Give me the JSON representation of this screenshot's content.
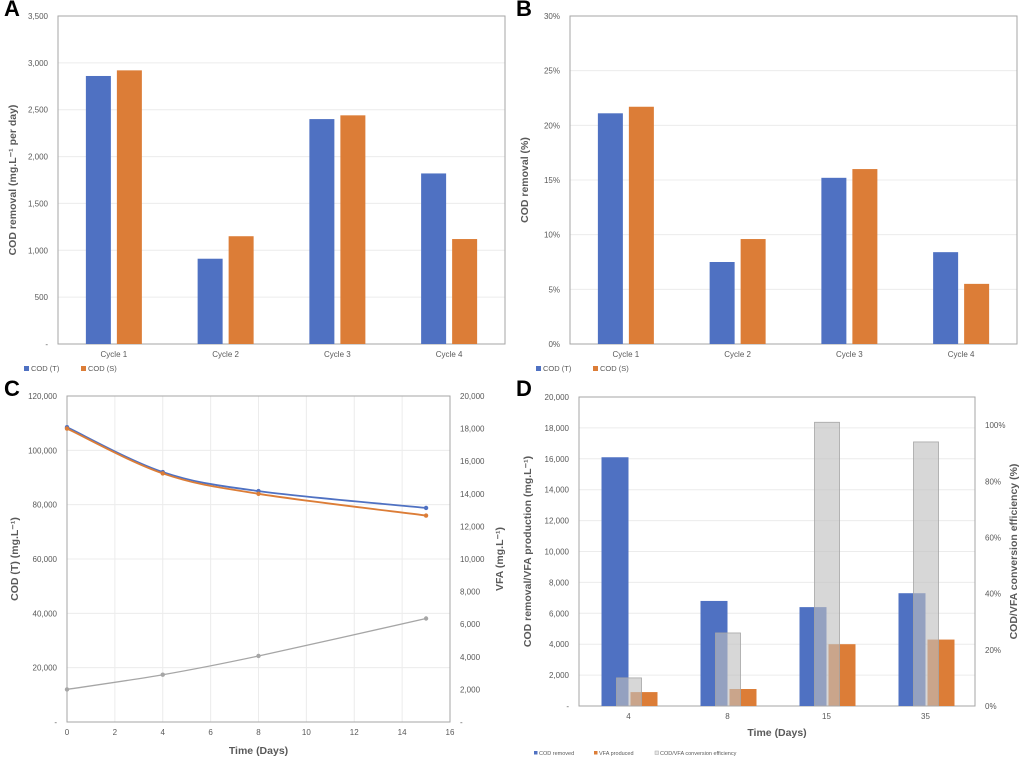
{
  "colors": {
    "blue": "#4f71c2",
    "orange": "#dc7d37",
    "grey": "#a6a6a6",
    "grey_fill": "#bfbfbf",
    "grid": "#ececec",
    "frame": "#a6a6a6"
  },
  "chart_data": [
    {
      "panel": "A",
      "type": "bar",
      "title": "",
      "xlabel": "",
      "ylabel": "COD removal (mg.L⁻¹ per day)",
      "categories": [
        "Cycle 1",
        "Cycle 2",
        "Cycle 3",
        "Cycle 4"
      ],
      "series": [
        {
          "name": "COD (T)",
          "color": "#4f71c2",
          "values": [
            2860,
            910,
            2400,
            1820
          ]
        },
        {
          "name": "COD (S)",
          "color": "#dc7d37",
          "values": [
            2920,
            1150,
            2440,
            1120
          ]
        }
      ],
      "ylim": [
        0,
        3500
      ],
      "yticks": [
        0,
        500,
        1000,
        1500,
        2000,
        2500,
        3000,
        3500
      ],
      "ytick_labels": [
        "-",
        "500",
        "1,000",
        "1,500",
        "2,000",
        "2,500",
        "3,000",
        "3,500"
      ],
      "grid": true,
      "legend": "bottom-left"
    },
    {
      "panel": "B",
      "type": "bar",
      "title": "",
      "xlabel": "",
      "ylabel": "COD removal (%)",
      "categories": [
        "Cycle 1",
        "Cycle 2",
        "Cycle 3",
        "Cycle 4"
      ],
      "series": [
        {
          "name": "COD (T)",
          "color": "#4f71c2",
          "values": [
            21.1,
            7.5,
            15.2,
            8.4
          ]
        },
        {
          "name": "COD (S)",
          "color": "#dc7d37",
          "values": [
            21.7,
            9.6,
            16.0,
            5.5
          ]
        }
      ],
      "ylim": [
        0,
        30
      ],
      "yticks": [
        0,
        5,
        10,
        15,
        20,
        25,
        30
      ],
      "ytick_labels": [
        "0%",
        "5%",
        "10%",
        "15%",
        "20%",
        "25%",
        "30%"
      ],
      "grid": true,
      "legend": "bottom-left"
    },
    {
      "panel": "C",
      "type": "line",
      "title": "",
      "xlabel": "Time (Days)",
      "ylabel": "COD (T) (mg.L⁻¹)",
      "y2label": "VFA (mg.L⁻¹)",
      "x": [
        0,
        4,
        8,
        15
      ],
      "series": [
        {
          "name": "COD (T)",
          "axis": "left",
          "color": "#4f71c2",
          "values": [
            108500,
            92000,
            85000,
            78800
          ]
        },
        {
          "name": "COD (S)",
          "axis": "left",
          "color": "#dc7d37",
          "values": [
            108000,
            91500,
            84000,
            76000
          ]
        },
        {
          "name": "VFA",
          "axis": "right",
          "color": "#a6a6a6",
          "values": [
            2000,
            2900,
            4050,
            6350
          ]
        }
      ],
      "xlim": [
        0,
        16
      ],
      "xticks": [
        0,
        2,
        4,
        6,
        8,
        10,
        12,
        14,
        16
      ],
      "ylim": [
        0,
        120000
      ],
      "yticks": [
        0,
        20000,
        40000,
        60000,
        80000,
        100000,
        120000
      ],
      "ytick_labels": [
        "-",
        "20,000",
        "40,000",
        "60,000",
        "80,000",
        "100,000",
        "120,000"
      ],
      "y2lim": [
        0,
        20000
      ],
      "y2ticks": [
        0,
        2000,
        4000,
        6000,
        8000,
        10000,
        12000,
        14000,
        16000,
        18000,
        20000
      ],
      "y2tick_labels": [
        "-",
        "2,000",
        "4,000",
        "6,000",
        "8,000",
        "10,000",
        "12,000",
        "14,000",
        "16,000",
        "18,000",
        "20,000"
      ],
      "grid": true
    },
    {
      "panel": "D",
      "type": "bar",
      "title": "",
      "xlabel": "Time (Days)",
      "ylabel": "COD removal/VFA production (mg.L⁻¹)",
      "y2label": "COD/VFA conversion efficiency (%)",
      "categories": [
        "4",
        "8",
        "15",
        "35"
      ],
      "series": [
        {
          "name": "COD removed",
          "axis": "left",
          "color": "#4f71c2",
          "values": [
            16100,
            6800,
            6400,
            7300
          ]
        },
        {
          "name": "VFA produced",
          "axis": "left",
          "color": "#dc7d37",
          "values": [
            900,
            1100,
            4000,
            4300
          ]
        },
        {
          "name": "COD/VFA conversion efficiency",
          "axis": "right",
          "color": "#bfbfbf",
          "values": [
            10,
            26,
            101,
            94
          ]
        }
      ],
      "ylim": [
        0,
        20000
      ],
      "yticks": [
        0,
        2000,
        4000,
        6000,
        8000,
        10000,
        12000,
        14000,
        16000,
        18000,
        20000
      ],
      "ytick_labels": [
        "-",
        "2,000",
        "4,000",
        "6,000",
        "8,000",
        "10,000",
        "12,000",
        "14,000",
        "16,000",
        "18,000",
        "20,000"
      ],
      "y2lim": [
        0,
        110
      ],
      "y2ticks": [
        0,
        20,
        40,
        60,
        80,
        100
      ],
      "y2tick_labels": [
        "0%",
        "20%",
        "40%",
        "60%",
        "80%",
        "100%"
      ],
      "grid": true,
      "legend": "bottom-left"
    }
  ],
  "panels": {
    "A": {
      "letter": "A"
    },
    "B": {
      "letter": "B"
    },
    "C": {
      "letter": "C"
    },
    "D": {
      "letter": "D"
    }
  }
}
